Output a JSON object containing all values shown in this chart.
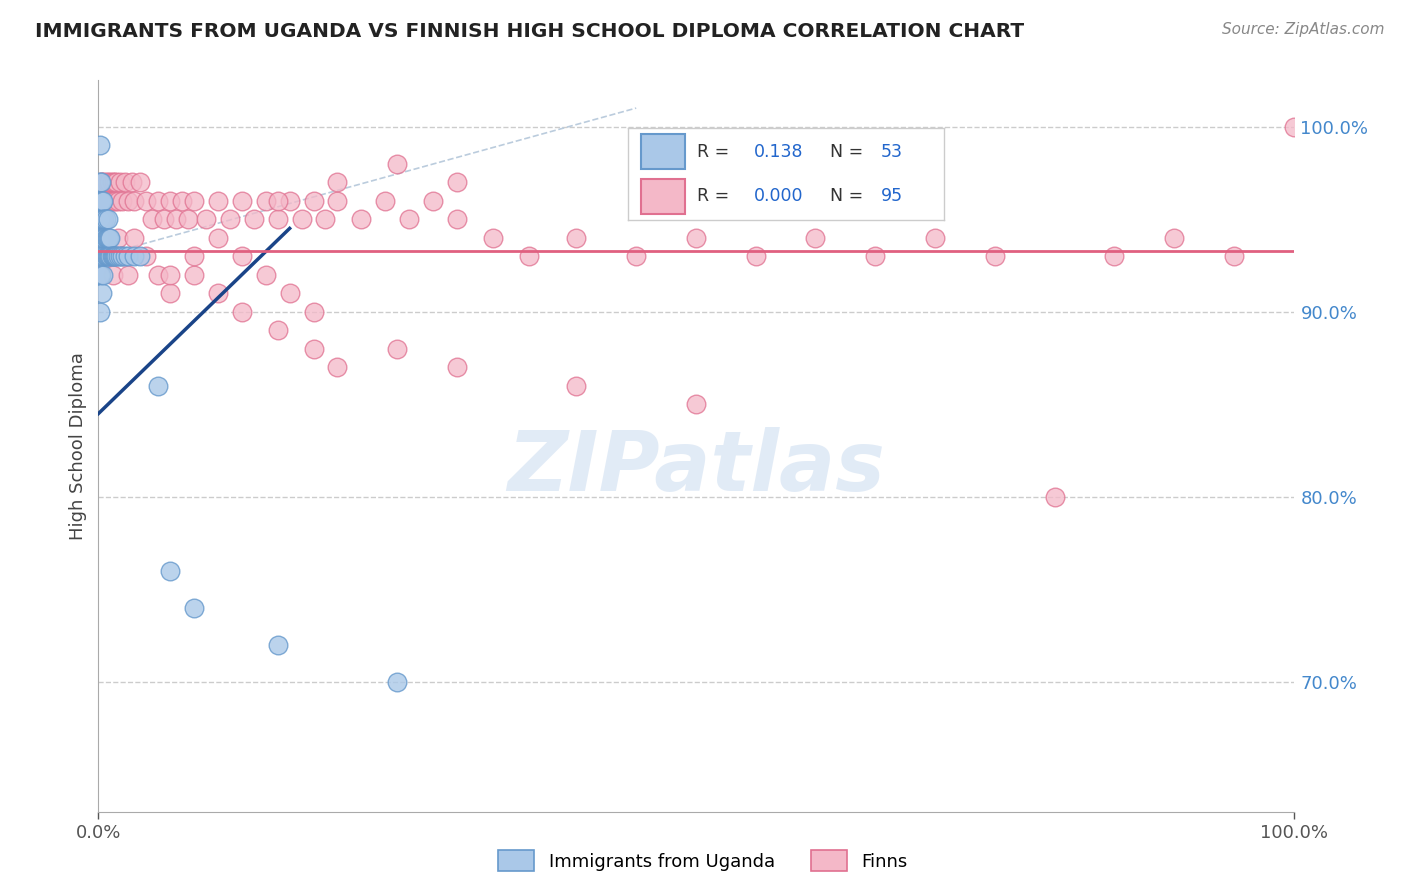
{
  "title": "IMMIGRANTS FROM UGANDA VS FINNISH HIGH SCHOOL DIPLOMA CORRELATION CHART",
  "source": "Source: ZipAtlas.com",
  "ylabel": "High School Diploma",
  "legend_label1": "Immigrants from Uganda",
  "legend_label2": "Finns",
  "R1": "0.138",
  "N1": "53",
  "R2": "0.000",
  "N2": "95",
  "blue_fill": "#aac8e8",
  "blue_edge": "#6699cc",
  "pink_fill": "#f4b8c8",
  "pink_edge": "#e07090",
  "trend_blue": "#1a4488",
  "trend_pink": "#e06080",
  "diag_color": "#bbccdd",
  "grid_color": "#cccccc",
  "ylim_low": 0.63,
  "ylim_high": 1.025,
  "xlim_low": 0.0,
  "xlim_high": 1.0,
  "watermark_text": "ZIPatlas",
  "blue_x": [
    0.001,
    0.001,
    0.001,
    0.001,
    0.001,
    0.001,
    0.001,
    0.002,
    0.002,
    0.002,
    0.002,
    0.002,
    0.003,
    0.003,
    0.003,
    0.003,
    0.003,
    0.004,
    0.004,
    0.004,
    0.004,
    0.005,
    0.005,
    0.005,
    0.006,
    0.006,
    0.006,
    0.007,
    0.007,
    0.008,
    0.008,
    0.008,
    0.009,
    0.009,
    0.01,
    0.01,
    0.011,
    0.012,
    0.013,
    0.014,
    0.015,
    0.016,
    0.018,
    0.02,
    0.022,
    0.025,
    0.03,
    0.035,
    0.05,
    0.06,
    0.08,
    0.15,
    0.25
  ],
  "blue_y": [
    0.99,
    0.97,
    0.96,
    0.95,
    0.93,
    0.92,
    0.9,
    0.97,
    0.96,
    0.95,
    0.94,
    0.92,
    0.96,
    0.95,
    0.94,
    0.93,
    0.91,
    0.96,
    0.95,
    0.94,
    0.92,
    0.95,
    0.94,
    0.93,
    0.95,
    0.94,
    0.93,
    0.94,
    0.93,
    0.95,
    0.94,
    0.93,
    0.94,
    0.93,
    0.94,
    0.93,
    0.93,
    0.93,
    0.93,
    0.93,
    0.93,
    0.93,
    0.93,
    0.93,
    0.93,
    0.93,
    0.93,
    0.93,
    0.86,
    0.76,
    0.74,
    0.72,
    0.7
  ],
  "pink_x": [
    0.001,
    0.002,
    0.003,
    0.004,
    0.005,
    0.006,
    0.007,
    0.008,
    0.009,
    0.01,
    0.011,
    0.012,
    0.013,
    0.014,
    0.015,
    0.016,
    0.018,
    0.02,
    0.022,
    0.025,
    0.028,
    0.03,
    0.035,
    0.04,
    0.045,
    0.05,
    0.055,
    0.06,
    0.065,
    0.07,
    0.075,
    0.08,
    0.09,
    0.1,
    0.11,
    0.12,
    0.13,
    0.14,
    0.15,
    0.16,
    0.17,
    0.18,
    0.19,
    0.2,
    0.22,
    0.24,
    0.26,
    0.28,
    0.3,
    0.33,
    0.36,
    0.4,
    0.45,
    0.5,
    0.55,
    0.6,
    0.65,
    0.7,
    0.75,
    0.8,
    0.85,
    0.9,
    0.95,
    1.0,
    0.005,
    0.008,
    0.012,
    0.016,
    0.02,
    0.025,
    0.03,
    0.04,
    0.05,
    0.06,
    0.08,
    0.1,
    0.12,
    0.15,
    0.18,
    0.2,
    0.25,
    0.3,
    0.4,
    0.5,
    0.15,
    0.2,
    0.25,
    0.3,
    0.1,
    0.12,
    0.14,
    0.16,
    0.18,
    0.08,
    0.06
  ],
  "pink_y": [
    0.96,
    0.97,
    0.97,
    0.96,
    0.97,
    0.96,
    0.97,
    0.96,
    0.97,
    0.96,
    0.97,
    0.96,
    0.97,
    0.96,
    0.97,
    0.96,
    0.97,
    0.96,
    0.97,
    0.96,
    0.97,
    0.96,
    0.97,
    0.96,
    0.95,
    0.96,
    0.95,
    0.96,
    0.95,
    0.96,
    0.95,
    0.96,
    0.95,
    0.96,
    0.95,
    0.96,
    0.95,
    0.96,
    0.95,
    0.96,
    0.95,
    0.96,
    0.95,
    0.96,
    0.95,
    0.96,
    0.95,
    0.96,
    0.95,
    0.94,
    0.93,
    0.94,
    0.93,
    0.94,
    0.93,
    0.94,
    0.93,
    0.94,
    0.93,
    0.8,
    0.93,
    0.94,
    0.93,
    1.0,
    0.94,
    0.93,
    0.92,
    0.94,
    0.93,
    0.92,
    0.94,
    0.93,
    0.92,
    0.91,
    0.92,
    0.91,
    0.9,
    0.89,
    0.88,
    0.87,
    0.88,
    0.87,
    0.86,
    0.85,
    0.96,
    0.97,
    0.98,
    0.97,
    0.94,
    0.93,
    0.92,
    0.91,
    0.9,
    0.93,
    0.92
  ]
}
